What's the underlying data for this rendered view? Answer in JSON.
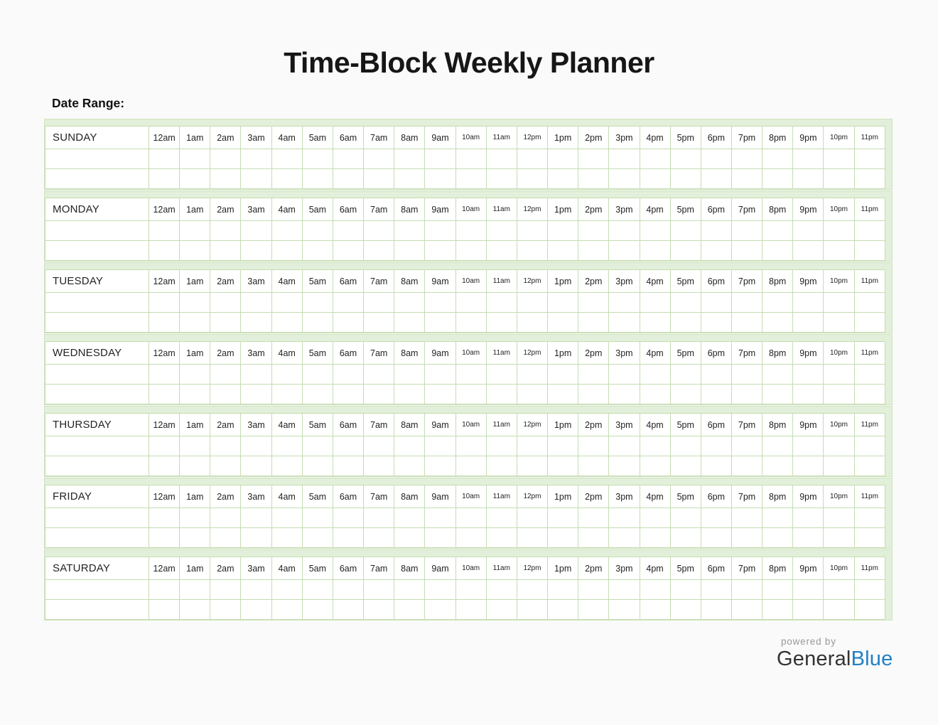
{
  "header": {
    "title": "Time-Block Weekly Planner",
    "date_range_label": "Date Range:"
  },
  "planner": {
    "days": [
      "SUNDAY",
      "MONDAY",
      "TUESDAY",
      "WEDNESDAY",
      "THURSDAY",
      "FRIDAY",
      "SATURDAY"
    ],
    "hours": [
      {
        "label": "12am",
        "small": false
      },
      {
        "label": "1am",
        "small": false
      },
      {
        "label": "2am",
        "small": false
      },
      {
        "label": "3am",
        "small": false
      },
      {
        "label": "4am",
        "small": false
      },
      {
        "label": "5am",
        "small": false
      },
      {
        "label": "6am",
        "small": false
      },
      {
        "label": "7am",
        "small": false
      },
      {
        "label": "8am",
        "small": false
      },
      {
        "label": "9am",
        "small": false
      },
      {
        "label": "10am",
        "small": true
      },
      {
        "label": "11am",
        "small": true
      },
      {
        "label": "12pm",
        "small": true
      },
      {
        "label": "1pm",
        "small": false
      },
      {
        "label": "2pm",
        "small": false
      },
      {
        "label": "3pm",
        "small": false
      },
      {
        "label": "4pm",
        "small": false
      },
      {
        "label": "5pm",
        "small": false
      },
      {
        "label": "6pm",
        "small": false
      },
      {
        "label": "7pm",
        "small": false
      },
      {
        "label": "8pm",
        "small": false
      },
      {
        "label": "9pm",
        "small": false
      },
      {
        "label": "10pm",
        "small": true
      },
      {
        "label": "11pm",
        "small": true
      }
    ],
    "empty_rows_per_day": 2
  },
  "footer": {
    "powered_by": "powered by",
    "brand_general": "General",
    "brand_blue": "Blue"
  },
  "colors": {
    "accent_fill": "#e2efda",
    "grid_border": "#c5ddb2",
    "brand_blue": "#2080c5",
    "footer_gray": "#989898",
    "title_text": "#161616",
    "page_background": "#fafafa"
  }
}
